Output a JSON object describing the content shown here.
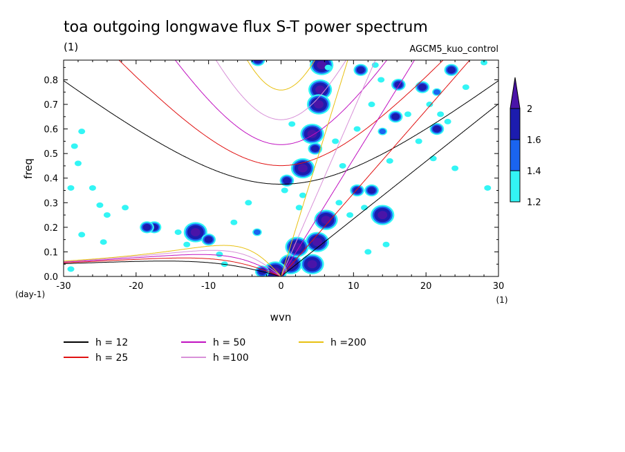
{
  "chart_data": {
    "type": "heatmap",
    "title": "toa outgoing longwave flux S-T power spectrum",
    "subtitle": "(1)",
    "run_label": "AGCM5_kuo_control",
    "xlabel": "wvn",
    "ylabel": "freq",
    "x_unit": "(1)",
    "y_unit": "(day-1)",
    "xlim": [
      -30,
      30
    ],
    "ylim": [
      0.0,
      0.88
    ],
    "x_ticks": [
      -30,
      -20,
      -10,
      0,
      10,
      20,
      30
    ],
    "x_tick_labels": [
      "-30",
      "-20",
      "-10",
      "0",
      "10",
      "20",
      "30"
    ],
    "y_ticks": [
      0.0,
      0.1,
      0.2,
      0.3,
      0.4,
      0.5,
      0.6,
      0.7,
      0.8
    ],
    "y_tick_labels": [
      "0.0",
      "0.1",
      "0.2",
      "0.3",
      "0.4",
      "0.5",
      "0.6",
      "0.7",
      "0.8"
    ],
    "grid": false,
    "colorbar": {
      "levels": [
        1.2,
        1.4,
        1.6,
        2.0
      ],
      "labels": [
        "1.2",
        "1.4",
        "1.6",
        "2"
      ],
      "colors": [
        "#33f5f5",
        "#1a64f0",
        "#1c1cae",
        "#4a14a8"
      ],
      "extend": "max"
    },
    "curves": [
      {
        "name": "h = 12",
        "color": "#000000",
        "equivalent_depth": 12
      },
      {
        "name": "h = 25",
        "color": "#e01010",
        "equivalent_depth": 25
      },
      {
        "name": "h = 50",
        "color": "#c010c0",
        "equivalent_depth": 50
      },
      {
        "name": "h =100",
        "color": "#d890d8",
        "equivalent_depth": 100
      },
      {
        "name": "h =200",
        "color": "#e8c010",
        "equivalent_depth": 200
      }
    ],
    "power_regions": [
      {
        "x": 5.6,
        "y": 0.86,
        "level": 2.0
      },
      {
        "x": 5.4,
        "y": 0.76,
        "level": 2.0
      },
      {
        "x": 5.2,
        "y": 0.7,
        "level": 2.0
      },
      {
        "x": 4.3,
        "y": 0.58,
        "level": 2.0
      },
      {
        "x": 4.7,
        "y": 0.52,
        "level": 1.6
      },
      {
        "x": 3.0,
        "y": 0.44,
        "level": 2.0
      },
      {
        "x": 0.8,
        "y": 0.39,
        "level": 1.6
      },
      {
        "x": 5.0,
        "y": 0.14,
        "level": 2.0
      },
      {
        "x": 6.2,
        "y": 0.23,
        "level": 2.0
      },
      {
        "x": 4.3,
        "y": 0.05,
        "level": 2.0
      },
      {
        "x": 1.3,
        "y": 0.05,
        "level": 2.0
      },
      {
        "x": 2.2,
        "y": 0.12,
        "level": 2.0
      },
      {
        "x": -0.8,
        "y": 0.02,
        "level": 2.0
      },
      {
        "x": -2.6,
        "y": 0.02,
        "level": 1.6
      },
      {
        "x": -11.8,
        "y": 0.18,
        "level": 2.0
      },
      {
        "x": -10.0,
        "y": 0.15,
        "level": 1.6
      },
      {
        "x": -17.5,
        "y": 0.2,
        "level": 1.6
      },
      {
        "x": -18.5,
        "y": 0.2,
        "level": 1.6
      },
      {
        "x": -3.2,
        "y": 0.88,
        "level": 1.6
      },
      {
        "x": 11.0,
        "y": 0.84,
        "level": 1.6
      },
      {
        "x": 19.5,
        "y": 0.77,
        "level": 1.6
      },
      {
        "x": 16.2,
        "y": 0.78,
        "level": 1.6
      },
      {
        "x": 23.5,
        "y": 0.84,
        "level": 1.6
      },
      {
        "x": 14.0,
        "y": 0.25,
        "level": 2.0
      },
      {
        "x": 10.5,
        "y": 0.35,
        "level": 1.6
      },
      {
        "x": 12.5,
        "y": 0.35,
        "level": 1.6
      },
      {
        "x": 15.8,
        "y": 0.65,
        "level": 1.6
      },
      {
        "x": 21.5,
        "y": 0.6,
        "level": 1.6
      },
      {
        "x": 21.5,
        "y": 0.75,
        "level": 1.4
      },
      {
        "x": 14.0,
        "y": 0.59,
        "level": 1.4
      },
      {
        "x": -3.3,
        "y": 0.18,
        "level": 1.4
      },
      {
        "x": -26.0,
        "y": 0.36,
        "level": 1.2
      },
      {
        "x": -25.0,
        "y": 0.29,
        "level": 1.2
      },
      {
        "x": -29.0,
        "y": 0.36,
        "level": 1.2
      },
      {
        "x": -27.5,
        "y": 0.17,
        "level": 1.2
      },
      {
        "x": -24.0,
        "y": 0.25,
        "level": 1.2
      },
      {
        "x": -21.5,
        "y": 0.28,
        "level": 1.2
      },
      {
        "x": -14.2,
        "y": 0.18,
        "level": 1.2
      },
      {
        "x": -13.0,
        "y": 0.13,
        "level": 1.2
      },
      {
        "x": -8.5,
        "y": 0.09,
        "level": 1.2
      },
      {
        "x": -7.8,
        "y": 0.05,
        "level": 1.2
      },
      {
        "x": -24.5,
        "y": 0.14,
        "level": 1.2
      },
      {
        "x": -29.0,
        "y": 0.03,
        "level": 1.2
      },
      {
        "x": -28.5,
        "y": 0.53,
        "level": 1.2
      },
      {
        "x": -28.0,
        "y": 0.46,
        "level": 1.2
      },
      {
        "x": -27.5,
        "y": 0.59,
        "level": 1.2
      },
      {
        "x": 13.0,
        "y": 0.86,
        "level": 1.2
      },
      {
        "x": 13.8,
        "y": 0.8,
        "level": 1.2
      },
      {
        "x": 12.5,
        "y": 0.7,
        "level": 1.2
      },
      {
        "x": 15.0,
        "y": 0.47,
        "level": 1.2
      },
      {
        "x": 19.0,
        "y": 0.55,
        "level": 1.2
      },
      {
        "x": 21.0,
        "y": 0.48,
        "level": 1.2
      },
      {
        "x": 24.0,
        "y": 0.44,
        "level": 1.2
      },
      {
        "x": 22.0,
        "y": 0.66,
        "level": 1.2
      },
      {
        "x": 20.5,
        "y": 0.7,
        "level": 1.2
      },
      {
        "x": 25.5,
        "y": 0.77,
        "level": 1.2
      },
      {
        "x": 28.0,
        "y": 0.87,
        "level": 1.2
      },
      {
        "x": 23.0,
        "y": 0.63,
        "level": 1.2
      },
      {
        "x": 17.5,
        "y": 0.66,
        "level": 1.2
      },
      {
        "x": 10.5,
        "y": 0.6,
        "level": 1.2
      },
      {
        "x": 11.5,
        "y": 0.28,
        "level": 1.2
      },
      {
        "x": 9.5,
        "y": 0.25,
        "level": 1.2
      },
      {
        "x": 8.0,
        "y": 0.3,
        "level": 1.2
      },
      {
        "x": 8.5,
        "y": 0.45,
        "level": 1.2
      },
      {
        "x": 7.5,
        "y": 0.55,
        "level": 1.2
      },
      {
        "x": 2.5,
        "y": 0.28,
        "level": 1.2
      },
      {
        "x": 3.0,
        "y": 0.33,
        "level": 1.2
      },
      {
        "x": 0.5,
        "y": 0.35,
        "level": 1.2
      },
      {
        "x": 6.5,
        "y": 0.85,
        "level": 1.2
      },
      {
        "x": 1.5,
        "y": 0.62,
        "level": 1.2
      },
      {
        "x": -4.5,
        "y": 0.3,
        "level": 1.2
      },
      {
        "x": -6.5,
        "y": 0.22,
        "level": 1.2
      },
      {
        "x": 12.0,
        "y": 0.1,
        "level": 1.2
      },
      {
        "x": 14.5,
        "y": 0.13,
        "level": 1.2
      },
      {
        "x": 28.5,
        "y": 0.36,
        "level": 1.2
      }
    ]
  }
}
